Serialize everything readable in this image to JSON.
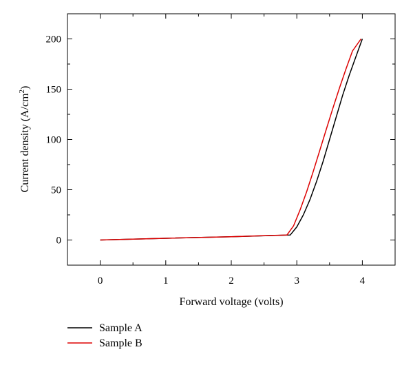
{
  "chart_data": {
    "type": "line",
    "xlabel": "Forward voltage (volts)",
    "ylabel": {
      "main": "Current density (A/cm",
      "sup": "2",
      "end": ")"
    },
    "xlim": [
      -0.5,
      4.5
    ],
    "ylim": [
      -25,
      225
    ],
    "xticks": [
      0,
      1,
      2,
      3,
      4
    ],
    "yticks": [
      0,
      50,
      100,
      150,
      200
    ],
    "grid": false,
    "legend_position": "bottom-left, below plot",
    "series": [
      {
        "name": "Sample A",
        "color": "#000000",
        "x": [
          0,
          1,
          2,
          2.9,
          3.0,
          3.1,
          3.2,
          3.3,
          3.4,
          3.5,
          3.6,
          3.7,
          3.8,
          3.9,
          4.0
        ],
        "y": [
          0,
          1.7,
          3.3,
          5,
          13,
          25,
          40,
          58,
          78,
          100,
          122,
          144,
          164,
          182,
          200
        ]
      },
      {
        "name": "Sample B",
        "color": "#dd0000",
        "x": [
          0,
          1,
          2,
          2.85,
          2.95,
          3.05,
          3.15,
          3.25,
          3.35,
          3.45,
          3.55,
          3.65,
          3.75,
          3.85,
          3.98
        ],
        "y": [
          0,
          1.7,
          3.3,
          5,
          14,
          30,
          48,
          68,
          89,
          110,
          131,
          151,
          170,
          188,
          200
        ]
      }
    ]
  }
}
